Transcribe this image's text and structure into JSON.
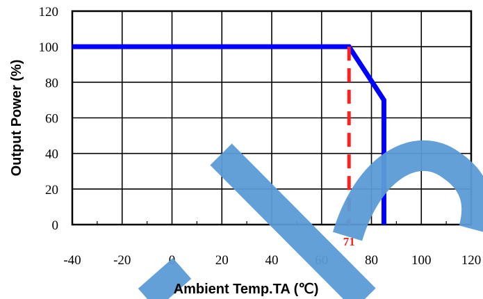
{
  "chart_data": {
    "type": "line",
    "xlabel": "Ambient Temp.TA (℃)",
    "ylabel": "Output Power (%)",
    "xlim": [
      -40,
      120
    ],
    "ylim": [
      0,
      120
    ],
    "x_ticks": [
      "-40",
      "-20",
      "0",
      "20",
      "40",
      "60",
      "80",
      "100",
      "120"
    ],
    "y_ticks": [
      "0",
      "20",
      "40",
      "60",
      "80",
      "100",
      "120"
    ],
    "grid": true,
    "series": [
      {
        "color": "#0000ff",
        "points": [
          [
            -40,
            100
          ],
          [
            71,
            100
          ],
          [
            85,
            70
          ],
          [
            85,
            0
          ]
        ]
      }
    ],
    "reference_line": {
      "x": 71,
      "label": "71",
      "color": "#ff2020",
      "style": "dashed"
    },
    "watermark_color": "#5b9bd5"
  }
}
